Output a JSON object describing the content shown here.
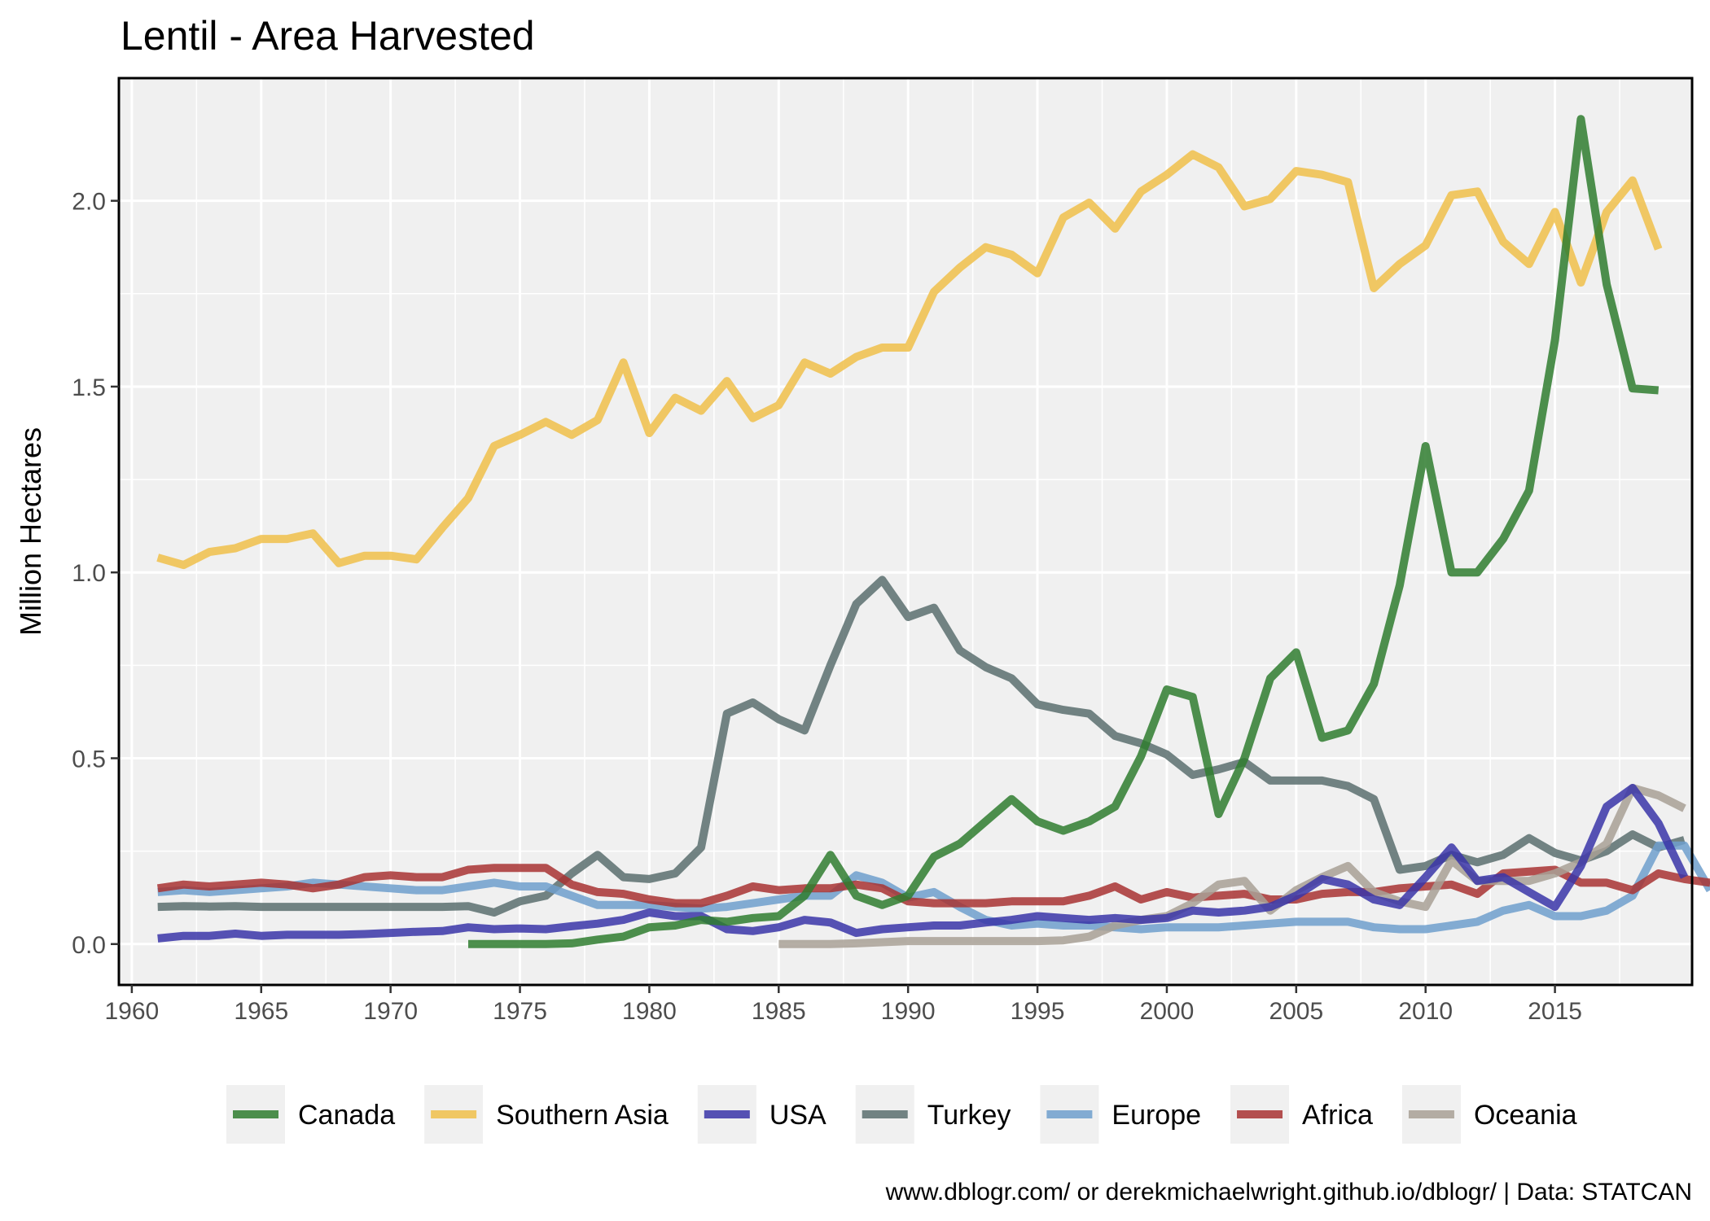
{
  "chart_data": {
    "type": "line",
    "title": "Lentil - Area Harvested",
    "xlabel": "",
    "ylabel": "Million Hectares",
    "caption": "www.dblogr.com/ or derekmichaelwright.github.io/dblogr/ | Data: STATCAN",
    "xlim": [
      1959.5,
      2020.3
    ],
    "ylim": [
      -0.11,
      2.33
    ],
    "x_ticks": [
      1960,
      1965,
      1970,
      1975,
      1980,
      1985,
      1990,
      1995,
      2000,
      2005,
      2010,
      2015
    ],
    "y_ticks": [
      0.0,
      0.5,
      1.0,
      1.5,
      2.0
    ],
    "y_tick_labels": [
      "0.0",
      "0.5",
      "1.0",
      "1.5",
      "2.0"
    ],
    "grid": true,
    "legend_position": "bottom",
    "series": [
      {
        "name": "Turkey",
        "color": "#5a6e6e",
        "x_start": 1961,
        "values": [
          0.1,
          0.102,
          0.101,
          0.102,
          0.1,
          0.1,
          0.1,
          0.1,
          0.1,
          0.1,
          0.1,
          0.1,
          0.102,
          0.085,
          0.115,
          0.13,
          0.19,
          0.24,
          0.18,
          0.175,
          0.19,
          0.26,
          0.62,
          0.65,
          0.605,
          0.575,
          0.75,
          0.915,
          0.98,
          0.88,
          0.905,
          0.79,
          0.745,
          0.715,
          0.645,
          0.63,
          0.62,
          0.56,
          0.54,
          0.51,
          0.455,
          0.47,
          0.49,
          0.44,
          0.44,
          0.44,
          0.425,
          0.39,
          0.2,
          0.21,
          0.24,
          0.22,
          0.24,
          0.285,
          0.245,
          0.225,
          0.25,
          0.295,
          0.26,
          0.28
        ]
      },
      {
        "name": "Europe",
        "color": "#6f9fcc",
        "x_start": 1961,
        "values": [
          0.14,
          0.145,
          0.14,
          0.145,
          0.15,
          0.155,
          0.165,
          0.16,
          0.155,
          0.15,
          0.145,
          0.145,
          0.155,
          0.165,
          0.155,
          0.155,
          0.13,
          0.105,
          0.105,
          0.105,
          0.1,
          0.095,
          0.1,
          0.11,
          0.12,
          0.13,
          0.13,
          0.185,
          0.165,
          0.125,
          0.14,
          0.1,
          0.065,
          0.05,
          0.055,
          0.05,
          0.05,
          0.045,
          0.04,
          0.045,
          0.045,
          0.045,
          0.05,
          0.055,
          0.06,
          0.06,
          0.06,
          0.045,
          0.04,
          0.04,
          0.05,
          0.06,
          0.09,
          0.105,
          0.075,
          0.075,
          0.09,
          0.13,
          0.265,
          0.265,
          0.145
        ]
      },
      {
        "name": "Africa",
        "color": "#a83232",
        "x_start": 1961,
        "values": [
          0.15,
          0.16,
          0.155,
          0.16,
          0.165,
          0.16,
          0.15,
          0.16,
          0.18,
          0.185,
          0.18,
          0.18,
          0.2,
          0.205,
          0.205,
          0.205,
          0.16,
          0.14,
          0.135,
          0.12,
          0.11,
          0.11,
          0.13,
          0.155,
          0.145,
          0.15,
          0.15,
          0.16,
          0.15,
          0.115,
          0.11,
          0.11,
          0.11,
          0.115,
          0.115,
          0.115,
          0.13,
          0.155,
          0.12,
          0.14,
          0.125,
          0.13,
          0.135,
          0.12,
          0.12,
          0.135,
          0.14,
          0.14,
          0.15,
          0.155,
          0.16,
          0.135,
          0.19,
          0.195,
          0.2,
          0.165,
          0.165,
          0.145,
          0.19,
          0.175,
          0.165
        ]
      },
      {
        "name": "Oceania",
        "color": "#a8a095",
        "x_start": 1985,
        "values": [
          0.0,
          0.0,
          0.0,
          0.002,
          0.005,
          0.008,
          0.008,
          0.008,
          0.008,
          0.008,
          0.008,
          0.01,
          0.02,
          0.05,
          0.065,
          0.075,
          0.11,
          0.16,
          0.17,
          0.09,
          0.145,
          0.18,
          0.21,
          0.14,
          0.115,
          0.1,
          0.225,
          0.17,
          0.17,
          0.17,
          0.19,
          0.22,
          0.27,
          0.42,
          0.4,
          0.365
        ]
      },
      {
        "name": "USA",
        "color": "#3a35a8",
        "x_start": 1961,
        "values": [
          0.015,
          0.022,
          0.022,
          0.028,
          0.022,
          0.025,
          0.025,
          0.025,
          0.027,
          0.03,
          0.033,
          0.035,
          0.045,
          0.04,
          0.042,
          0.04,
          0.048,
          0.055,
          0.065,
          0.085,
          0.075,
          0.075,
          0.04,
          0.035,
          0.045,
          0.065,
          0.058,
          0.03,
          0.04,
          0.045,
          0.05,
          0.05,
          0.058,
          0.065,
          0.075,
          0.07,
          0.065,
          0.07,
          0.065,
          0.07,
          0.09,
          0.085,
          0.09,
          0.1,
          0.13,
          0.175,
          0.16,
          0.12,
          0.105,
          0.18,
          0.26,
          0.17,
          0.18,
          0.14,
          0.1,
          0.21,
          0.37,
          0.42,
          0.325,
          0.18
        ]
      },
      {
        "name": "Southern Asia",
        "color": "#f0c04a",
        "x_start": 1961,
        "values": [
          1.04,
          1.02,
          1.055,
          1.065,
          1.09,
          1.09,
          1.105,
          1.025,
          1.045,
          1.045,
          1.035,
          1.12,
          1.2,
          1.34,
          1.37,
          1.405,
          1.37,
          1.41,
          1.565,
          1.375,
          1.47,
          1.435,
          1.515,
          1.415,
          1.45,
          1.565,
          1.535,
          1.58,
          1.605,
          1.605,
          1.755,
          1.82,
          1.875,
          1.855,
          1.805,
          1.955,
          1.995,
          1.925,
          2.025,
          2.07,
          2.125,
          2.09,
          1.985,
          2.005,
          2.08,
          2.07,
          2.05,
          1.765,
          1.83,
          1.88,
          2.015,
          2.025,
          1.89,
          1.83,
          1.97,
          1.78,
          1.97,
          2.055,
          1.87
        ]
      },
      {
        "name": "Canada",
        "color": "#2f7d2f",
        "x_start": 1973,
        "values": [
          0.0,
          0.0,
          0.0,
          0.0,
          0.002,
          0.012,
          0.02,
          0.045,
          0.05,
          0.065,
          0.06,
          0.07,
          0.075,
          0.13,
          0.24,
          0.13,
          0.105,
          0.13,
          0.235,
          0.27,
          0.33,
          0.39,
          0.33,
          0.305,
          0.33,
          0.37,
          0.505,
          0.685,
          0.665,
          0.35,
          0.5,
          0.715,
          0.785,
          0.555,
          0.575,
          0.7,
          0.965,
          1.34,
          1.0,
          1.0,
          1.09,
          1.22,
          1.625,
          2.22,
          1.775,
          1.495,
          1.49
        ]
      }
    ],
    "legend_order": [
      "Canada",
      "Southern Asia",
      "USA",
      "Turkey",
      "Europe",
      "Africa",
      "Oceania"
    ]
  }
}
